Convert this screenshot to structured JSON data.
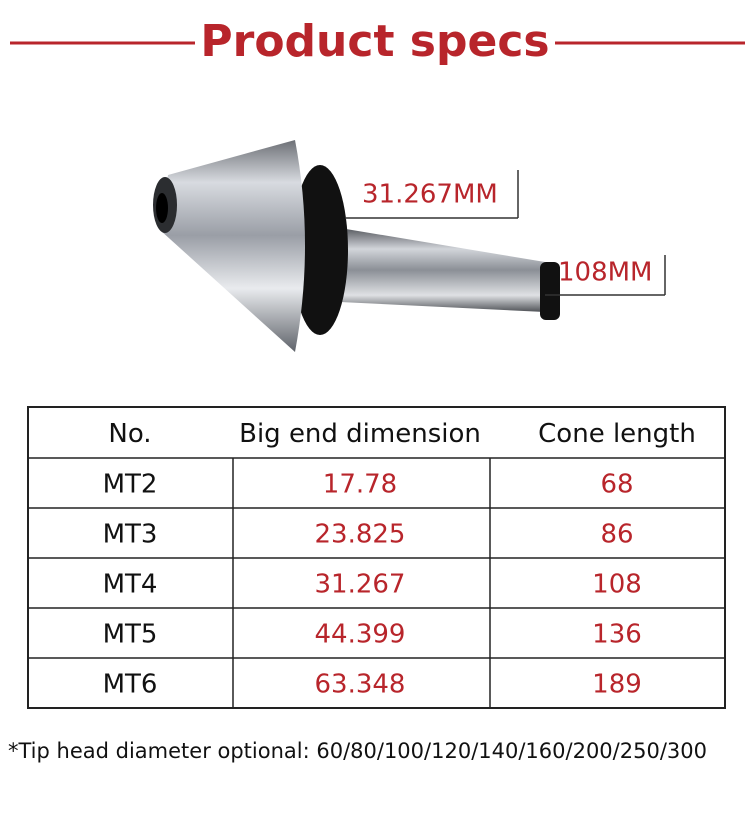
{
  "header": {
    "title": "Product specs"
  },
  "annotations": {
    "big_end": "31.267MM",
    "length": "108MM"
  },
  "table": {
    "columns": [
      "No.",
      "Big end dimension",
      "Cone length"
    ],
    "rows": [
      [
        "MT2",
        "17.78",
        "68"
      ],
      [
        "MT3",
        "23.825",
        "86"
      ],
      [
        "MT4",
        "31.267",
        "108"
      ],
      [
        "MT5",
        "44.399",
        "136"
      ],
      [
        "MT6",
        "63.348",
        "189"
      ]
    ]
  },
  "footnote": "*Tip head diameter optional: 60/80/100/120/140/160/200/250/300"
}
